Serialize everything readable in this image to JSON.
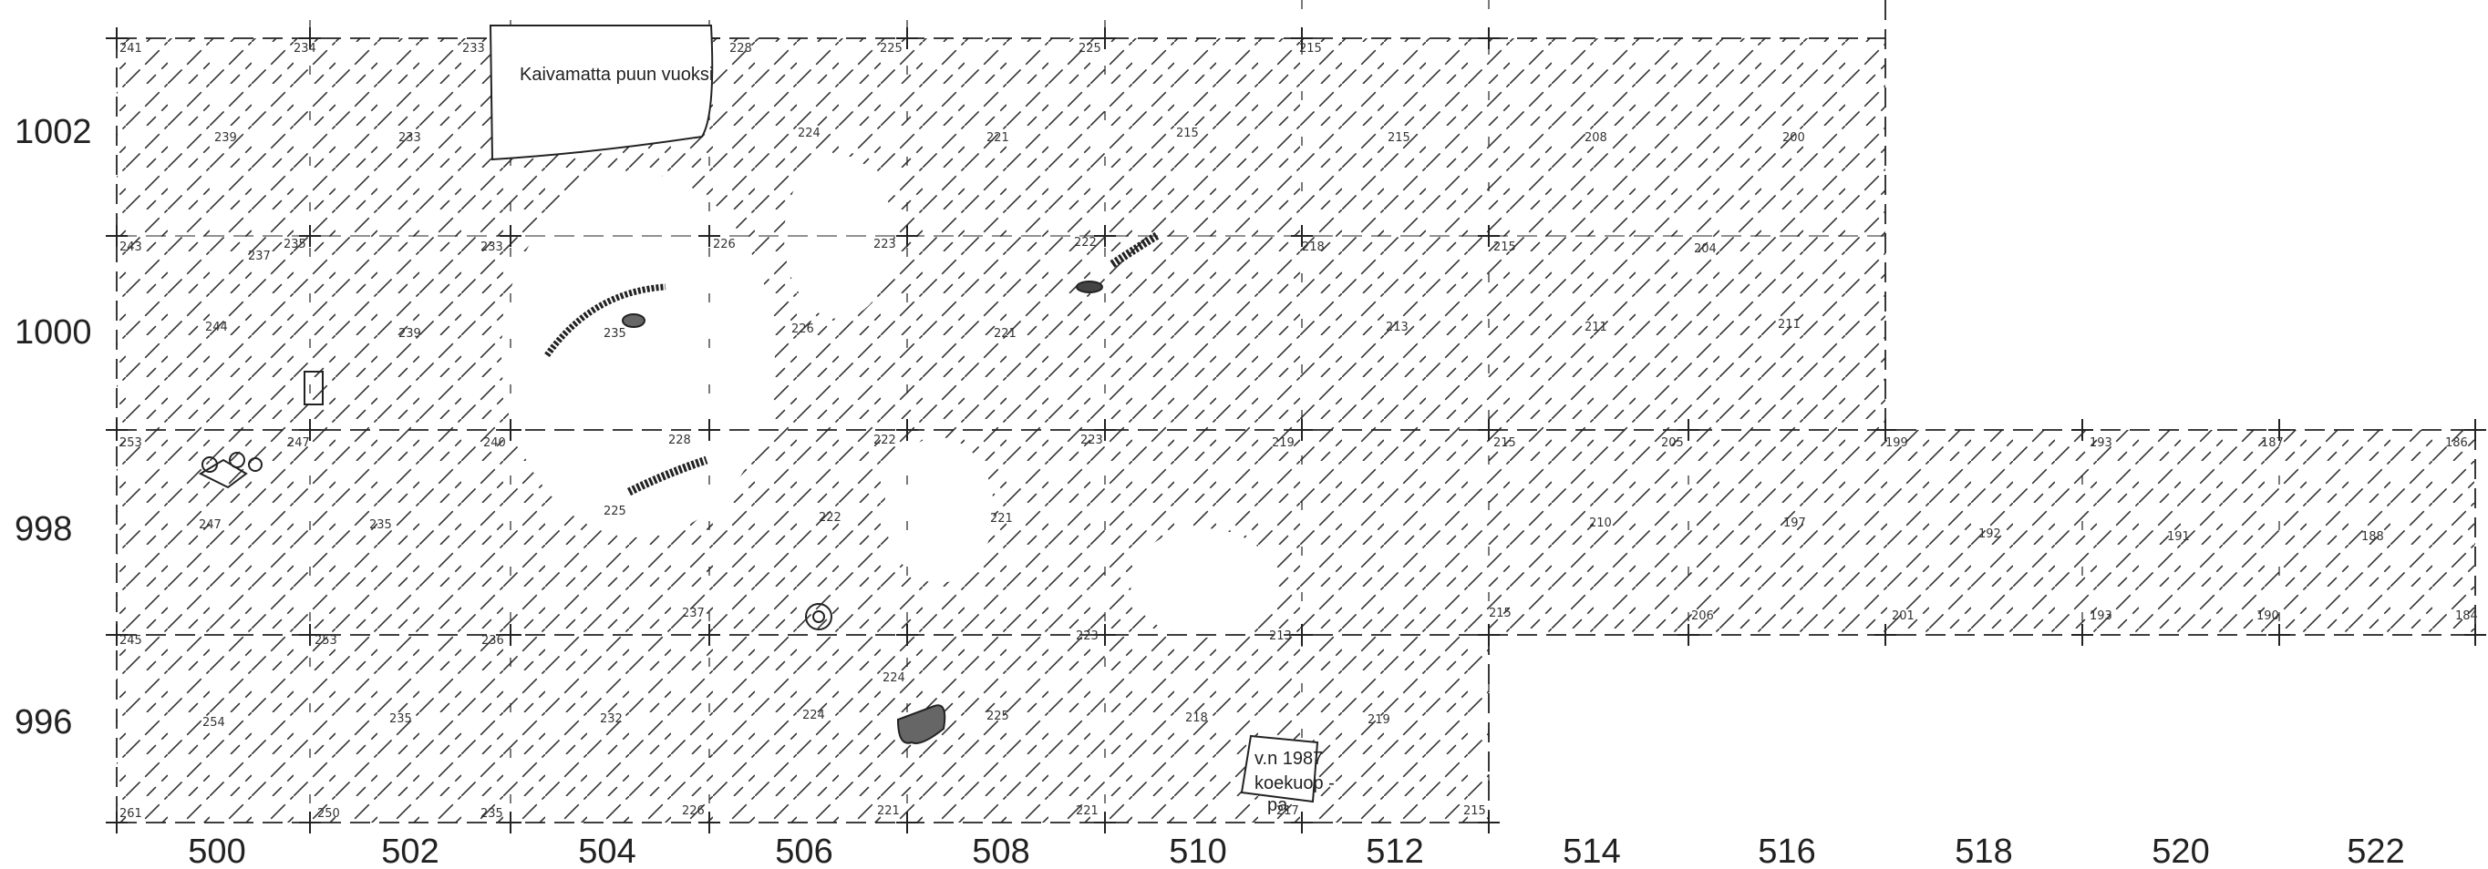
{
  "x_axis_labels": [
    "500",
    "502",
    "504",
    "506",
    "508",
    "510",
    "512",
    "514",
    "516",
    "518",
    "520",
    "522"
  ],
  "y_axis_labels": [
    "1002",
    "1000",
    "998",
    "996"
  ],
  "notes": {
    "unexcavated": "Kaivamatta puun vuoksi",
    "test_pit": [
      "v.n 1987",
      "koekuop -",
      "pa"
    ]
  },
  "elevations": [
    "241",
    "234",
    "233",
    "228",
    "225",
    "225",
    "215",
    "239",
    "233",
    "224",
    "221",
    "215",
    "215",
    "208",
    "200",
    "243",
    "235",
    "233",
    "226",
    "223",
    "222",
    "218",
    "215",
    "204",
    "237",
    "244",
    "239",
    "235",
    "226",
    "221",
    "213",
    "211",
    "211",
    "253",
    "247",
    "240",
    "228",
    "222",
    "223",
    "219",
    "215",
    "205",
    "199",
    "193",
    "187",
    "186",
    "247",
    "235",
    "225",
    "222",
    "221",
    "210",
    "197",
    "192",
    "191",
    "188",
    "245",
    "253",
    "236",
    "237",
    "223",
    "215",
    "213",
    "206",
    "201",
    "193",
    "190",
    "184",
    "254",
    "235",
    "232",
    "224",
    "224",
    "225",
    "218",
    "219",
    "261",
    "250",
    "235",
    "226",
    "221",
    "221",
    "217",
    "215"
  ]
}
